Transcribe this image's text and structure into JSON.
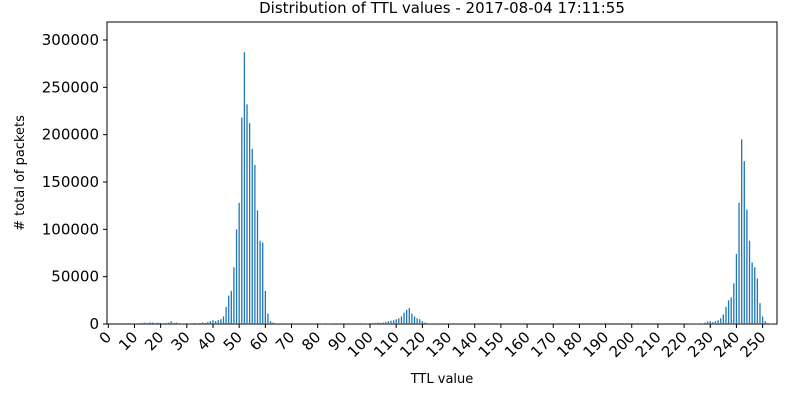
{
  "chart_data": {
    "type": "bar",
    "title": "Distribution of TTL values - 2017-08-04 17:11:55",
    "xlabel": "TTL value",
    "ylabel": "# total of packets",
    "color": "#1f77b4",
    "x": [
      0,
      1,
      2,
      3,
      4,
      5,
      6,
      7,
      8,
      9,
      10,
      11,
      12,
      13,
      14,
      15,
      16,
      17,
      18,
      19,
      20,
      21,
      22,
      23,
      24,
      25,
      26,
      27,
      28,
      29,
      30,
      31,
      32,
      33,
      34,
      35,
      36,
      37,
      38,
      39,
      40,
      41,
      42,
      43,
      44,
      45,
      46,
      47,
      48,
      49,
      50,
      51,
      52,
      53,
      54,
      55,
      56,
      57,
      58,
      59,
      60,
      61,
      62,
      63,
      64,
      65,
      66,
      67,
      68,
      69,
      70,
      71,
      72,
      73,
      74,
      75,
      76,
      77,
      78,
      79,
      80,
      81,
      82,
      83,
      84,
      85,
      86,
      87,
      88,
      89,
      90,
      91,
      92,
      93,
      94,
      95,
      96,
      97,
      98,
      99,
      100,
      101,
      102,
      103,
      104,
      105,
      106,
      107,
      108,
      109,
      110,
      111,
      112,
      113,
      114,
      115,
      116,
      117,
      118,
      119,
      120,
      121,
      122,
      123,
      124,
      125,
      126,
      127,
      128,
      129,
      130,
      131,
      132,
      133,
      134,
      135,
      136,
      137,
      138,
      139,
      140,
      141,
      142,
      143,
      144,
      145,
      146,
      147,
      148,
      149,
      150,
      151,
      152,
      153,
      154,
      155,
      156,
      157,
      158,
      159,
      160,
      161,
      162,
      163,
      164,
      165,
      166,
      167,
      168,
      169,
      170,
      171,
      172,
      173,
      174,
      175,
      176,
      177,
      178,
      179,
      180,
      181,
      182,
      183,
      184,
      185,
      186,
      187,
      188,
      189,
      190,
      191,
      192,
      193,
      194,
      195,
      196,
      197,
      198,
      199,
      200,
      201,
      202,
      203,
      204,
      205,
      206,
      207,
      208,
      209,
      210,
      211,
      212,
      213,
      214,
      215,
      216,
      217,
      218,
      219,
      220,
      221,
      222,
      223,
      224,
      225,
      226,
      227,
      228,
      229,
      230,
      231,
      232,
      233,
      234,
      235,
      236,
      237,
      238,
      239,
      240,
      241,
      242,
      243,
      244,
      245,
      246,
      247,
      248,
      249,
      250,
      251,
      252,
      253,
      254,
      255
    ],
    "values": [
      0,
      0,
      0,
      0,
      0,
      0,
      0,
      0,
      0,
      0,
      500,
      800,
      1000,
      1200,
      1500,
      1200,
      1800,
      1500,
      1000,
      1500,
      1200,
      800,
      1000,
      1500,
      3000,
      1000,
      1500,
      800,
      500,
      300,
      300,
      500,
      800,
      1000,
      800,
      1000,
      1500,
      1200,
      2000,
      3000,
      4000,
      3000,
      4000,
      5000,
      8000,
      18000,
      30000,
      35000,
      60000,
      100000,
      128000,
      218000,
      287000,
      232000,
      212000,
      185000,
      168000,
      120000,
      88000,
      86000,
      35000,
      11000,
      3000,
      1500,
      800,
      300,
      200,
      200,
      200,
      200,
      200,
      200,
      200,
      200,
      200,
      200,
      200,
      200,
      200,
      200,
      200,
      300,
      500,
      800,
      500,
      300,
      200,
      200,
      200,
      200,
      200,
      200,
      200,
      200,
      200,
      200,
      200,
      300,
      300,
      500,
      800,
      1000,
      1000,
      1500,
      1200,
      1500,
      2000,
      3000,
      3500,
      4000,
      5000,
      6000,
      8000,
      12000,
      15000,
      17000,
      11000,
      8000,
      6000,
      5000,
      3000,
      1500,
      800,
      500,
      300,
      200,
      200,
      200,
      200,
      200,
      200,
      200,
      200,
      200,
      200,
      200,
      200,
      200,
      200,
      200,
      100,
      100,
      100,
      100,
      100,
      100,
      100,
      100,
      100,
      100,
      100,
      100,
      100,
      100,
      100,
      100,
      100,
      100,
      100,
      100,
      100,
      100,
      100,
      100,
      100,
      100,
      100,
      100,
      100,
      100,
      100,
      100,
      100,
      100,
      100,
      100,
      100,
      100,
      100,
      100,
      100,
      100,
      100,
      100,
      100,
      100,
      100,
      100,
      100,
      100,
      100,
      100,
      100,
      100,
      100,
      100,
      100,
      100,
      100,
      100,
      100,
      100,
      100,
      100,
      100,
      100,
      100,
      100,
      100,
      100,
      100,
      100,
      100,
      100,
      100,
      100,
      100,
      100,
      100,
      100,
      200,
      200,
      300,
      300,
      500,
      500,
      800,
      500,
      1500,
      2500,
      3000,
      2000,
      3000,
      4000,
      6000,
      10000,
      18000,
      25000,
      28000,
      43000,
      74000,
      128000,
      195000,
      172000,
      121000,
      88000,
      65000,
      60000,
      48000,
      22000,
      8000,
      3000,
      1000,
      500,
      300,
      200
    ],
    "xlim": [
      -0.5,
      255.5
    ],
    "ylim": [
      0,
      319000
    ],
    "xticks": [
      0,
      10,
      20,
      30,
      40,
      50,
      60,
      70,
      80,
      90,
      100,
      110,
      120,
      130,
      140,
      150,
      160,
      170,
      180,
      190,
      200,
      210,
      220,
      230,
      240,
      250
    ],
    "yticks": [
      0,
      50000,
      100000,
      150000,
      200000,
      250000,
      300000
    ]
  }
}
